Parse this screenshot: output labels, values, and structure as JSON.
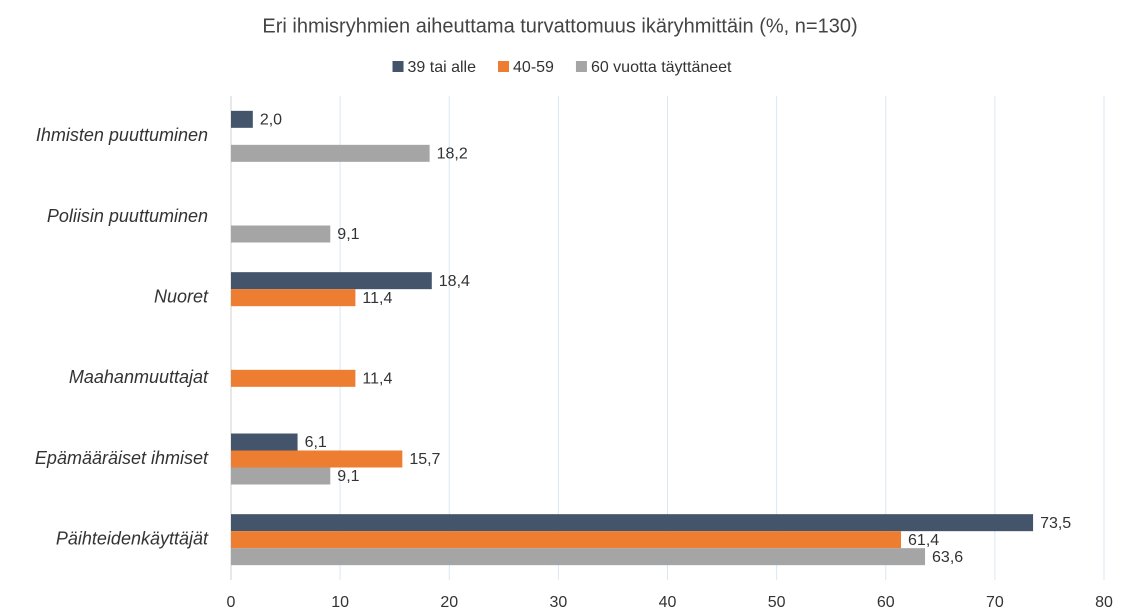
{
  "chart_data": {
    "type": "bar",
    "orientation": "horizontal",
    "title": "Eri ihmisryhmien aiheuttama turvattomuus ikäryhmittäin (%, n=130)",
    "categories": [
      "Ihmisten puuttuminen",
      "Poliisin puuttuminen",
      "Nuoret",
      "Maahanmuuttajat",
      "Epämääräiset ihmiset",
      "Päihteidenkäyttäjät"
    ],
    "series": [
      {
        "name": "39 tai alle",
        "color": "#44546a",
        "values": [
          2.0,
          null,
          18.4,
          null,
          6.1,
          73.5
        ],
        "value_labels": [
          "2,0",
          null,
          "18,4",
          null,
          "6,1",
          "73,5"
        ]
      },
      {
        "name": "40-59",
        "color": "#ed7d31",
        "values": [
          null,
          null,
          11.4,
          11.4,
          15.7,
          61.4
        ],
        "value_labels": [
          null,
          null,
          "11,4",
          "11,4",
          "15,7",
          "61,4"
        ]
      },
      {
        "name": "60 vuotta täyttäneet",
        "color": "#a5a5a5",
        "values": [
          18.2,
          9.1,
          null,
          null,
          9.1,
          63.6
        ],
        "value_labels": [
          "18,2",
          "9,1",
          null,
          null,
          "9,1",
          "63,6"
        ]
      }
    ],
    "xlim": [
      0,
      80
    ],
    "xticks": [
      0,
      10,
      20,
      30,
      40,
      50,
      60,
      70,
      80
    ],
    "grid": true,
    "legend": "top"
  }
}
